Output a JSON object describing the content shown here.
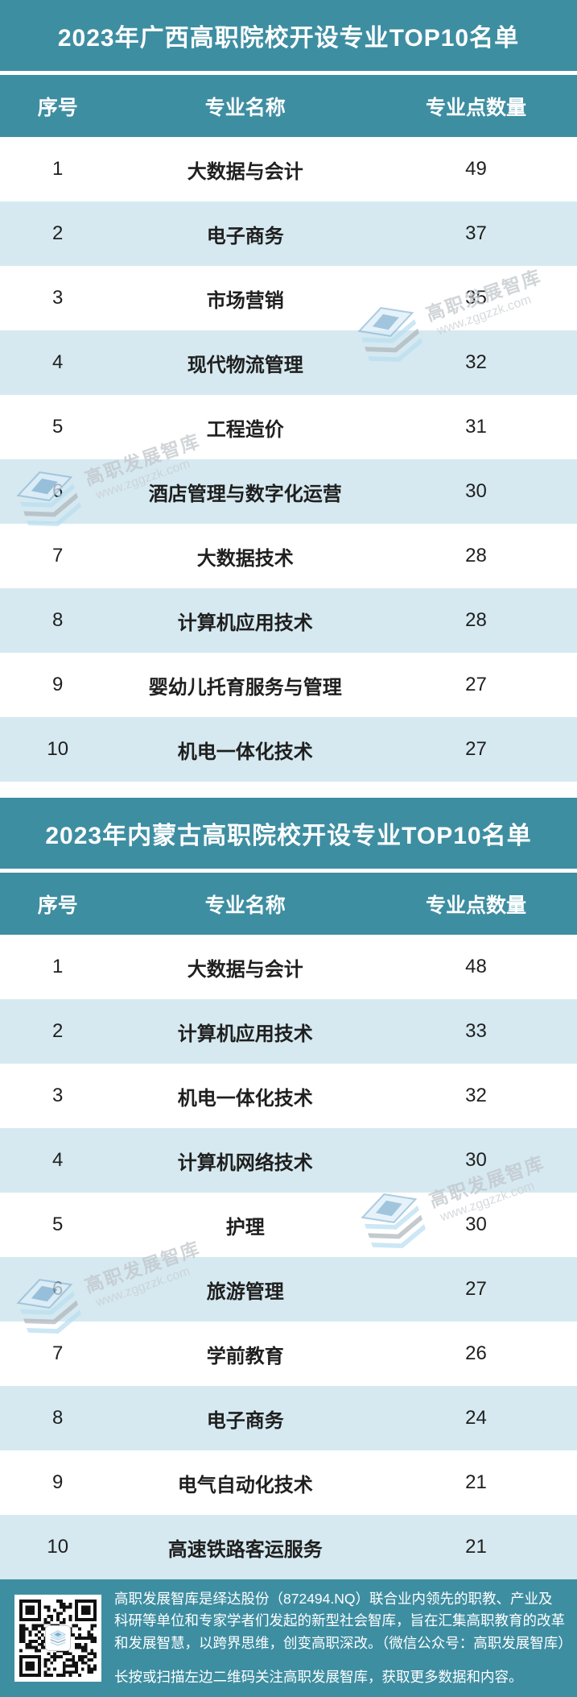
{
  "colors": {
    "teal": "#3E8EA2",
    "row_alt": "#D6E9F0",
    "cell_text": "#1F1F1F",
    "footer_text": "#FFFFFF",
    "watermark_text": "#C6CBD0"
  },
  "tables": [
    {
      "title": "2023年广西高职院校开设专业TOP10名单",
      "headers": {
        "rank": "序号",
        "major": "专业名称",
        "count": "专业点数量"
      },
      "rows": [
        {
          "rank": "1",
          "major": "大数据与会计",
          "count": "49"
        },
        {
          "rank": "2",
          "major": "电子商务",
          "count": "37"
        },
        {
          "rank": "3",
          "major": "市场营销",
          "count": "35"
        },
        {
          "rank": "4",
          "major": "现代物流管理",
          "count": "32"
        },
        {
          "rank": "5",
          "major": "工程造价",
          "count": "31"
        },
        {
          "rank": "6",
          "major": "酒店管理与数字化运营",
          "count": "30"
        },
        {
          "rank": "7",
          "major": "大数据技术",
          "count": "28"
        },
        {
          "rank": "8",
          "major": "计算机应用技术",
          "count": "28"
        },
        {
          "rank": "9",
          "major": "婴幼儿托育服务与管理",
          "count": "27"
        },
        {
          "rank": "10",
          "major": "机电一体化技术",
          "count": "27"
        }
      ]
    },
    {
      "title": "2023年内蒙古高职院校开设专业TOP10名单",
      "headers": {
        "rank": "序号",
        "major": "专业名称",
        "count": "专业点数量"
      },
      "rows": [
        {
          "rank": "1",
          "major": "大数据与会计",
          "count": "48"
        },
        {
          "rank": "2",
          "major": "计算机应用技术",
          "count": "33"
        },
        {
          "rank": "3",
          "major": "机电一体化技术",
          "count": "32"
        },
        {
          "rank": "4",
          "major": "计算机网络技术",
          "count": "30"
        },
        {
          "rank": "5",
          "major": "护理",
          "count": "30"
        },
        {
          "rank": "6",
          "major": "旅游管理",
          "count": "27"
        },
        {
          "rank": "7",
          "major": "学前教育",
          "count": "26"
        },
        {
          "rank": "8",
          "major": "电子商务",
          "count": "24"
        },
        {
          "rank": "9",
          "major": "电气自动化技术",
          "count": "21"
        },
        {
          "rank": "10",
          "major": "高速铁路客运服务",
          "count": "21"
        }
      ]
    }
  ],
  "watermark": {
    "name": "高职发展智库",
    "url": "www.zggzzk.com"
  },
  "footer": {
    "about": "高职发展智库是绎达股份（872494.NQ）联合业内领先的职教、产业及科研等单位和专家学者们发起的新型社会智库，旨在汇集高职教育的改革和发展智慧，以跨界思维，创变高职深改。（微信公众号：高职发展智库）",
    "cta": "长按或扫描左边二维码关注高职发展智库，获取更多数据和内容。"
  }
}
